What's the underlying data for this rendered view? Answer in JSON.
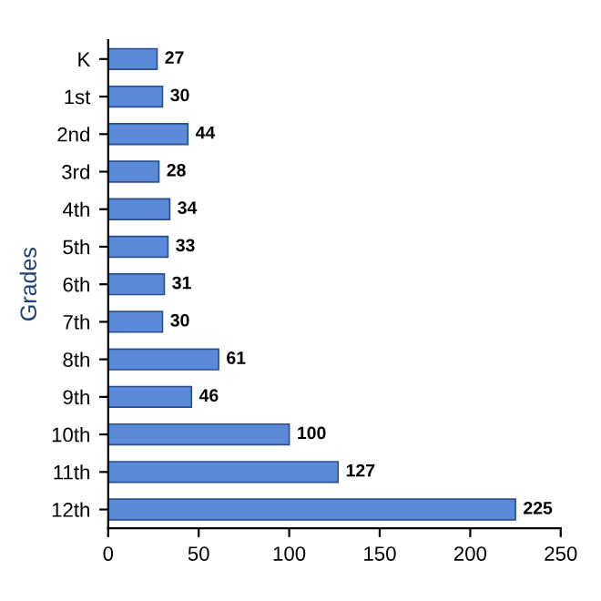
{
  "chart_data": {
    "type": "bar",
    "orientation": "horizontal",
    "ylabel": "Grades",
    "categories": [
      "K",
      "1st",
      "2nd",
      "3rd",
      "4th",
      "5th",
      "6th",
      "7th",
      "8th",
      "9th",
      "10th",
      "11th",
      "12th"
    ],
    "values": [
      27,
      30,
      44,
      28,
      34,
      33,
      31,
      30,
      61,
      46,
      100,
      127,
      225
    ],
    "color": "#5b8ad8",
    "xlim": [
      0,
      250
    ],
    "xticks": [
      0,
      50,
      100,
      150,
      200,
      250
    ],
    "data_labels": true,
    "grid": false
  }
}
